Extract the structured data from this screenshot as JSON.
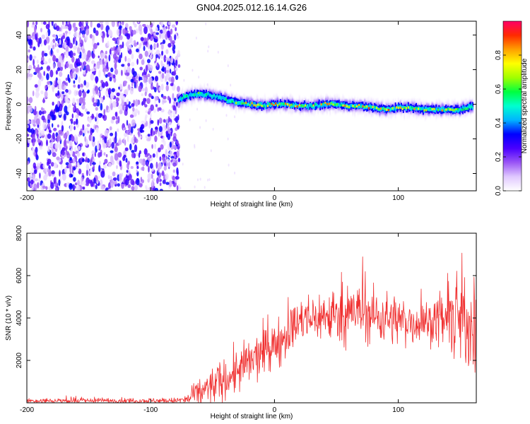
{
  "figure": {
    "title": "GN04.2025.012.16.14.G26"
  },
  "chart_data": [
    {
      "type": "heatmap",
      "title": "GN04.2025.012.16.14.G26",
      "xlabel": "Height of straight line (km)",
      "ylabel": "Frequency (Hz)",
      "xlim": [
        -200,
        163
      ],
      "ylim": [
        -50,
        48
      ],
      "x_ticks": [
        -200,
        -100,
        0,
        100
      ],
      "y_ticks": [
        -40,
        -20,
        0,
        20,
        40
      ],
      "colorbar": {
        "label": "Normalized spectral amplitude",
        "range": [
          0.0,
          1.0
        ],
        "ticks": [
          "0.0",
          "0.2",
          "0.4",
          "0.6",
          "0.8"
        ],
        "colormap": [
          "#ffffff",
          "#e0c8ff",
          "#9a55f5",
          "#4a00ff",
          "#0000ff",
          "#00b4ff",
          "#00ffd0",
          "#00ff40",
          "#a0ff00",
          "#ffff00",
          "#ffa000",
          "#ff2a00",
          "#ff0066"
        ]
      },
      "noise_region_x": [
        -200,
        -77
      ],
      "ridge": {
        "x": [
          -78,
          -70,
          -60,
          -50,
          -40,
          -30,
          -20,
          -10,
          0,
          10,
          20,
          30,
          40,
          50,
          60,
          70,
          80,
          90,
          100,
          110,
          120,
          130,
          140,
          150,
          160
        ],
        "frequency_hz": [
          3,
          5,
          6,
          5,
          3,
          1,
          0,
          -1,
          0,
          0,
          -1,
          -1,
          0,
          0,
          -1,
          -1,
          -2,
          -3,
          -2,
          -2,
          -3,
          -3,
          -3,
          -3,
          -1
        ],
        "amplitude": [
          0.5,
          0.6,
          0.55,
          0.55,
          0.6,
          0.7,
          0.75,
          0.7,
          0.8,
          0.75,
          0.8,
          0.7,
          0.75,
          0.8,
          0.8,
          0.75,
          0.8,
          0.8,
          0.75,
          0.8,
          0.8,
          0.75,
          0.7,
          0.6,
          0.5
        ]
      },
      "grid": false,
      "legend": "colorbar right"
    },
    {
      "type": "line",
      "xlabel": "Height of straight line (km)",
      "ylabel": "SNR (10 * v/v)",
      "xlim": [
        -200,
        163
      ],
      "ylim": [
        0,
        8000
      ],
      "x_ticks": [
        -200,
        -100,
        0,
        100
      ],
      "y_ticks": [
        2000,
        4000,
        6000,
        8000
      ],
      "color": "#f03030",
      "series": [
        {
          "x": [
            -200,
            -150,
            -100,
            -80,
            -70,
            -60,
            -50,
            -40,
            -30,
            -20,
            -10,
            0,
            10,
            20,
            30,
            40,
            50,
            60,
            70,
            80,
            90,
            100,
            110,
            120,
            130,
            140,
            150,
            160,
            163
          ],
          "mean": [
            100,
            100,
            100,
            100,
            150,
            500,
            800,
            1100,
            1500,
            1900,
            2300,
            2700,
            3300,
            3800,
            4000,
            4100,
            4150,
            4200,
            4200,
            4100,
            4000,
            3900,
            3800,
            3800,
            3850,
            3900,
            3900,
            3800,
            3800
          ],
          "spread": [
            150,
            150,
            150,
            150,
            300,
            800,
            1000,
            1100,
            1200,
            1300,
            1300,
            1300,
            1200,
            1200,
            1300,
            1400,
            1500,
            1500,
            1500,
            1500,
            1400,
            1300,
            1200,
            1100,
            1100,
            1800,
            2800,
            2600,
            2400
          ]
        }
      ],
      "grid": false
    }
  ]
}
